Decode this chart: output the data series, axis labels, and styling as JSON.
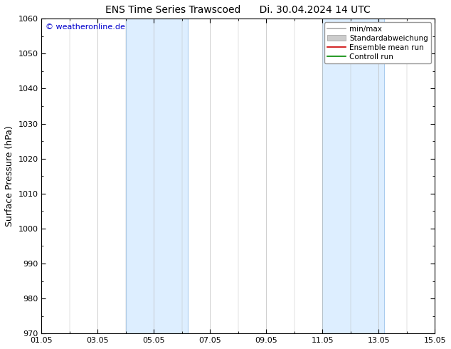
{
  "title_left": "ENS Time Series Trawscoed",
  "title_right": "Di. 30.04.2024 14 UTC",
  "ylabel": "Surface Pressure (hPa)",
  "ylim": [
    970,
    1060
  ],
  "yticks": [
    970,
    980,
    990,
    1000,
    1010,
    1020,
    1030,
    1040,
    1050,
    1060
  ],
  "xtick_labels": [
    "01.05",
    "03.05",
    "05.05",
    "07.05",
    "09.05",
    "11.05",
    "13.05",
    "15.05"
  ],
  "xtick_positions": [
    0,
    2,
    4,
    6,
    8,
    10,
    12,
    14
  ],
  "x_total_days": 14,
  "shaded_bands": [
    {
      "x_start": 3.0,
      "x_end": 5.2
    },
    {
      "x_start": 10.0,
      "x_end": 12.2
    }
  ],
  "band_color": "#ddeeff",
  "band_edge_color": "#aaccee",
  "copyright_text": "© weatheronline.de",
  "copyright_color": "#0000cc",
  "legend_entries": [
    {
      "label": "min/max",
      "color": "#aaaaaa",
      "lw": 1.2,
      "ls": "-",
      "type": "line"
    },
    {
      "label": "Standardabweichung",
      "color": "#cccccc",
      "lw": 6,
      "ls": "-",
      "type": "patch"
    },
    {
      "label": "Ensemble mean run",
      "color": "#cc0000",
      "lw": 1.2,
      "ls": "-",
      "type": "line"
    },
    {
      "label": "Controll run",
      "color": "#008800",
      "lw": 1.2,
      "ls": "-",
      "type": "line"
    }
  ],
  "background_color": "#ffffff",
  "grid_color": "#bbbbbb",
  "title_fontsize": 10,
  "label_fontsize": 9,
  "tick_fontsize": 8,
  "legend_fontsize": 7.5
}
